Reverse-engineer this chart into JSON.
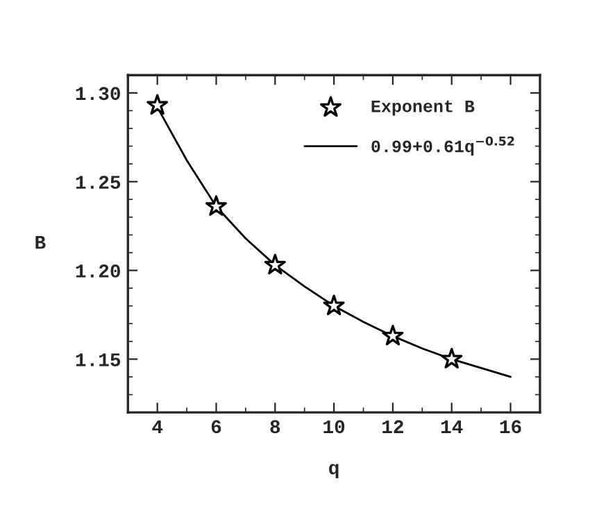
{
  "chart_data": {
    "type": "scatter",
    "xlabel": "q",
    "ylabel": "B",
    "xlim": [
      3,
      17
    ],
    "ylim": [
      1.12,
      1.31
    ],
    "xticks": [
      4,
      6,
      8,
      10,
      12,
      14,
      16
    ],
    "yticks": [
      1.15,
      {
        "value": 1.2,
        "label": "1.20"
      },
      1.25,
      {
        "value": 1.3,
        "label": "1.30"
      }
    ],
    "grid": false,
    "legend": "top right",
    "series": [
      {
        "name": "Exponent B",
        "marker": "star",
        "color": "#000000",
        "x": [
          4,
          6,
          8,
          10,
          12,
          14
        ],
        "values": [
          1.293,
          1.236,
          1.203,
          1.18,
          1.163,
          1.15
        ]
      },
      {
        "name": "0.99+0.61q$^{−0.52}$",
        "type": "line",
        "marker": "none",
        "line_style": "solid",
        "color": "#000000",
        "x": [
          4,
          5,
          6,
          7,
          8,
          9,
          10,
          11,
          12,
          13,
          14,
          15,
          16
        ],
        "values": [
          1.292,
          1.262,
          1.236,
          1.218,
          1.203,
          1.191,
          1.18,
          1.171,
          1.163,
          1.156,
          1.15,
          1.145,
          1.14
        ]
      }
    ]
  }
}
